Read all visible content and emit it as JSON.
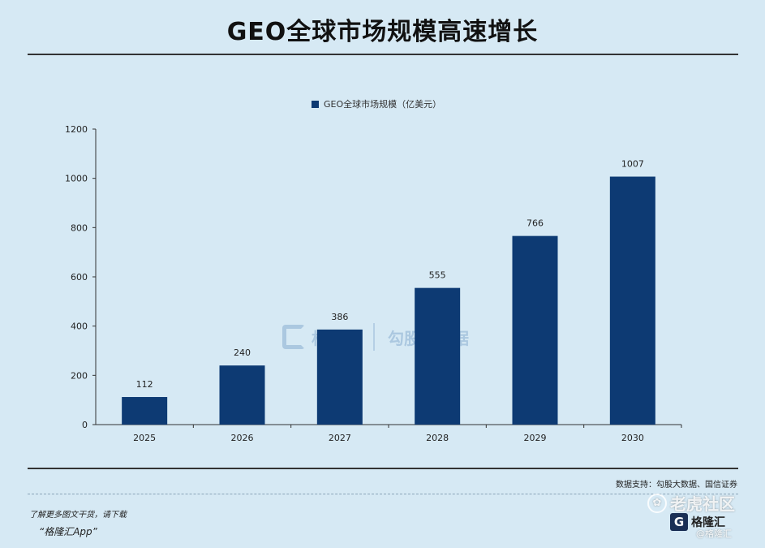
{
  "page": {
    "title": "GEO全球市场规模高速增长",
    "source": "数据支持：勾股大数据、国信证券",
    "promo_line1": "了解更多图文干货，请下载",
    "promo_line2": "“格隆汇App”",
    "brand": "格隆汇",
    "brand_icon": "G",
    "community": "老虎社区",
    "community_icon": "tiger-logo-icon",
    "handle": "@格隆汇",
    "watermark_left": "格隆汇",
    "watermark_right": "勾股大数据",
    "bar_color": "#0d3a73",
    "background": "#d6e9f4"
  },
  "chart_data": {
    "type": "bar",
    "title": "",
    "categories": [
      "2025",
      "2026",
      "2027",
      "2028",
      "2029",
      "2030"
    ],
    "series": [
      {
        "name": "GEO全球市场规模（亿美元）",
        "values": [
          112,
          240,
          386,
          555,
          766,
          1007
        ]
      }
    ],
    "data_labels": [
      "112",
      "240",
      "386",
      "555",
      "766",
      "1007"
    ],
    "ylim": [
      0,
      1200
    ],
    "yticks": [
      0,
      200,
      400,
      600,
      800,
      1000,
      1200
    ],
    "legend_position": "top-center",
    "grid": false
  }
}
